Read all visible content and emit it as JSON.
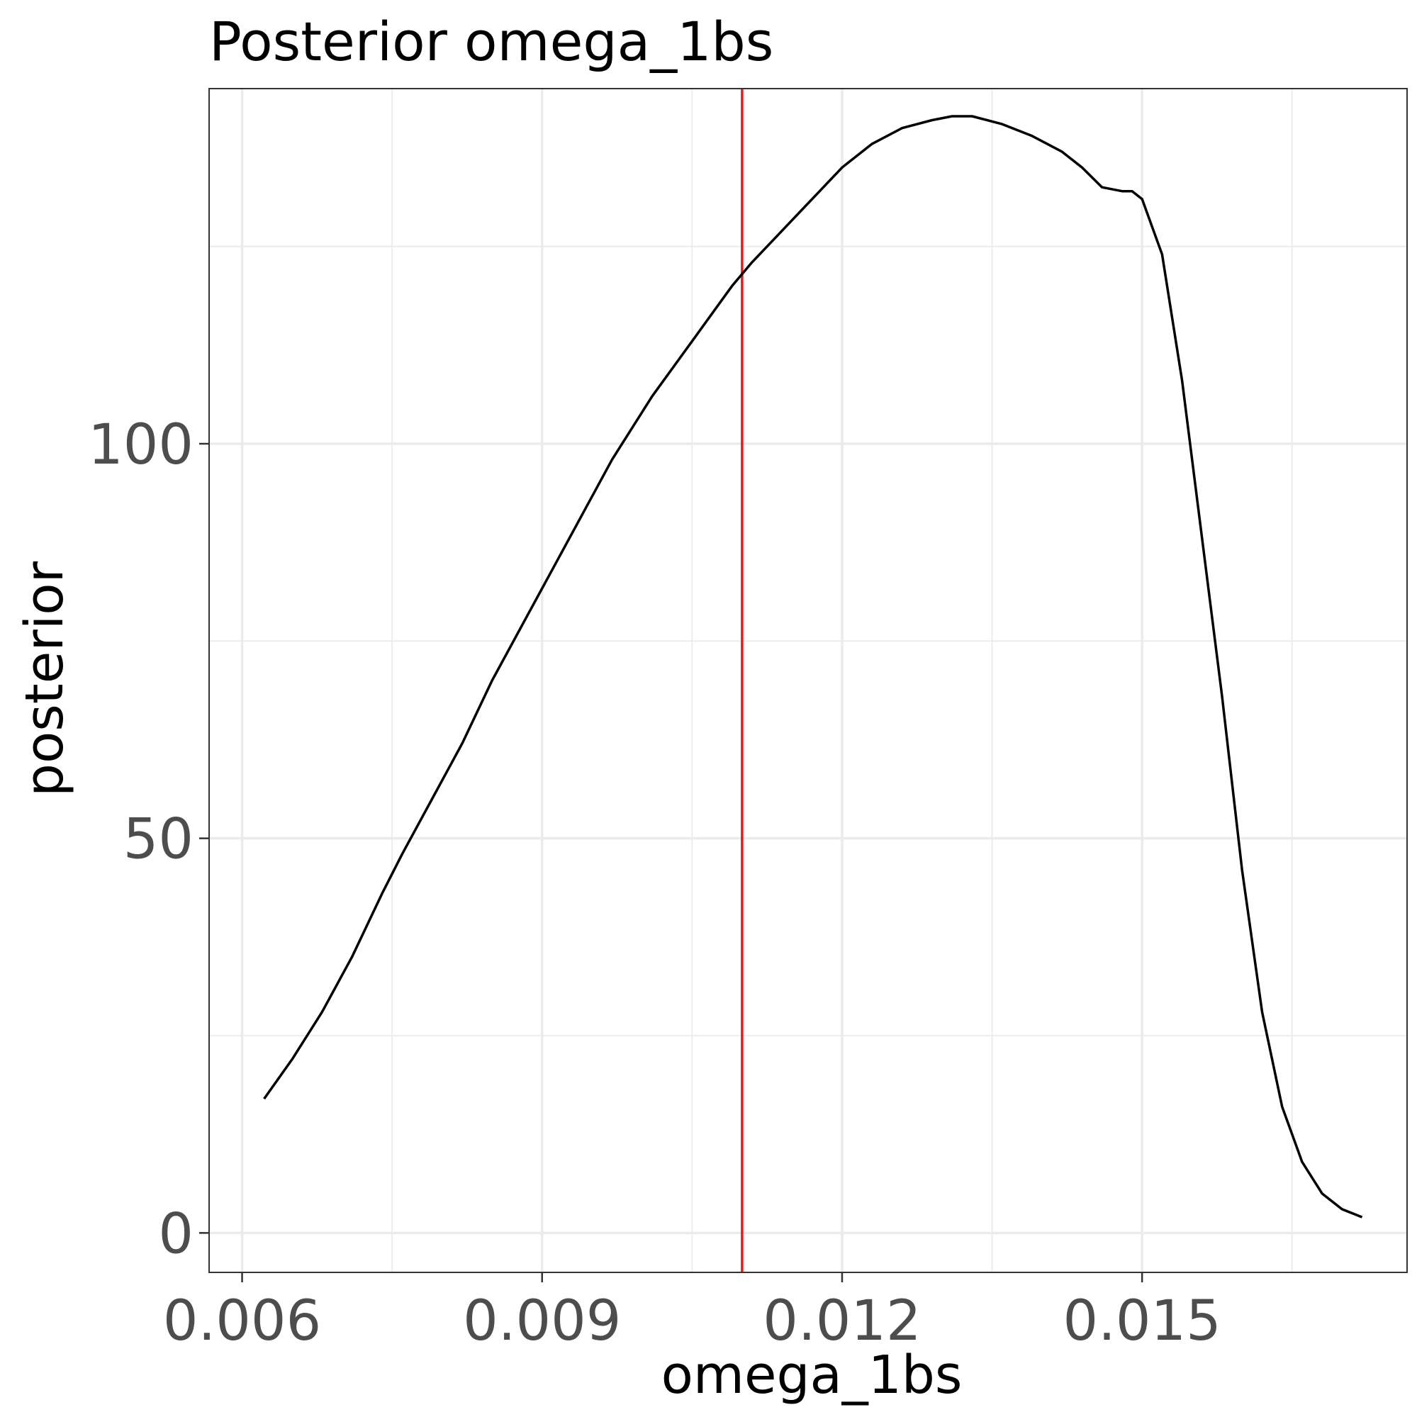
{
  "chart_data": {
    "type": "line",
    "title": "Posterior omega_1bs",
    "xlabel": "omega_1bs",
    "ylabel": "posterior",
    "xlim": [
      0.00567,
      0.01765
    ],
    "ylim": [
      -5,
      145
    ],
    "x_ticks": [
      {
        "value": 0.006,
        "label": "0.006"
      },
      {
        "value": 0.009,
        "label": "0.009"
      },
      {
        "value": 0.012,
        "label": "0.012"
      },
      {
        "value": 0.015,
        "label": "0.015"
      }
    ],
    "x_minor_ticks": [
      0.0075,
      0.0105,
      0.0135,
      0.0165
    ],
    "y_ticks": [
      {
        "value": 0,
        "label": "0"
      },
      {
        "value": 50,
        "label": "50"
      },
      {
        "value": 100,
        "label": "100"
      }
    ],
    "y_minor_ticks": [
      25,
      75,
      125
    ],
    "grid": true,
    "legend": "none",
    "series": [
      {
        "color": "#000000",
        "x": [
          0.00622,
          0.0065,
          0.0068,
          0.0071,
          0.0074,
          0.0076,
          0.0079,
          0.0082,
          0.0085,
          0.0088,
          0.0091,
          0.0094,
          0.0097,
          0.0101,
          0.0105,
          0.0109,
          0.0111,
          0.0114,
          0.0117,
          0.012,
          0.0123,
          0.0126,
          0.0129,
          0.0131,
          0.0133,
          0.0136,
          0.0139,
          0.0142,
          0.0144,
          0.0146,
          0.0148,
          0.0149,
          0.015,
          0.0152,
          0.0154,
          0.0156,
          0.0158,
          0.016,
          0.0162,
          0.0164,
          0.0166,
          0.0168,
          0.017,
          0.0172
        ],
        "values": [
          17,
          22,
          28,
          35,
          43,
          48,
          55,
          62,
          70,
          77,
          84,
          91,
          98,
          106,
          113,
          120,
          123,
          127,
          131,
          135,
          138,
          140,
          141,
          141.5,
          141.5,
          140.5,
          139,
          137,
          135,
          132.5,
          132,
          132,
          131,
          124,
          108,
          88,
          68,
          46,
          28,
          16,
          9,
          5,
          3,
          2
        ]
      }
    ],
    "reference_lines": [
      {
        "axis": "x",
        "value": 0.011,
        "color": "#e41a1c"
      }
    ]
  }
}
